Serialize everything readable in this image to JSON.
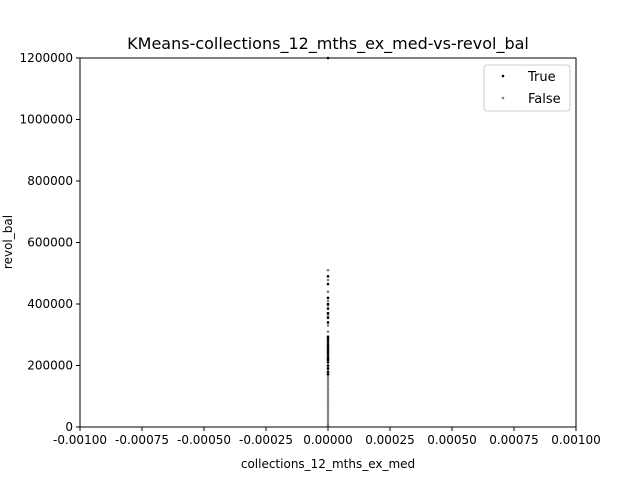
{
  "chart_data": {
    "type": "scatter",
    "title": "KMeans-collections_12_mths_ex_med-vs-revol_bal",
    "xlabel": "collections_12_mths_ex_med",
    "ylabel": "revol_bal",
    "xlim": [
      -0.001,
      0.001
    ],
    "ylim": [
      0,
      1200000
    ],
    "x_ticks": [
      "-0.00100",
      "-0.00075",
      "-0.00050",
      "-0.00025",
      "0.00000",
      "0.00025",
      "0.00050",
      "0.00075",
      "0.00100"
    ],
    "y_ticks": [
      "0",
      "200000",
      "400000",
      "600000",
      "800000",
      "1000000",
      "1200000"
    ],
    "legend_position": "top-right",
    "grid": false,
    "series": [
      {
        "name": "True",
        "color": "#000000",
        "points": [
          {
            "x": 0,
            "y": 1200000
          },
          {
            "x": 0,
            "y": 490000
          },
          {
            "x": 0,
            "y": 465000
          },
          {
            "x": 0,
            "y": 420000
          },
          {
            "x": 0,
            "y": 400000
          },
          {
            "x": 0,
            "y": 385000
          },
          {
            "x": 0,
            "y": 370000
          },
          {
            "x": 0,
            "y": 355000
          },
          {
            "x": 0,
            "y": 340000
          },
          {
            "x": 0,
            "y": 292000
          },
          {
            "x": 0,
            "y": 285000
          },
          {
            "x": 0,
            "y": 278000
          },
          {
            "x": 0,
            "y": 270000
          },
          {
            "x": 0,
            "y": 262000
          },
          {
            "x": 0,
            "y": 255000
          },
          {
            "x": 0,
            "y": 248000
          },
          {
            "x": 0,
            "y": 240000
          },
          {
            "x": 0,
            "y": 232000
          },
          {
            "x": 0,
            "y": 225000
          },
          {
            "x": 0,
            "y": 218000
          },
          {
            "x": 0,
            "y": 210000
          },
          {
            "x": 0,
            "y": 200000
          },
          {
            "x": 0,
            "y": 190000
          },
          {
            "x": 0,
            "y": 180000
          },
          {
            "x": 0,
            "y": 172000
          }
        ]
      },
      {
        "name": "False",
        "color": "#808080",
        "points": [
          {
            "x": 0,
            "y": 510000
          },
          {
            "x": 0,
            "y": 478000
          },
          {
            "x": 0,
            "y": 440000
          },
          {
            "x": 0,
            "y": 410000
          },
          {
            "x": 0,
            "y": 395000
          },
          {
            "x": 0,
            "y": 362000
          },
          {
            "x": 0,
            "y": 330000
          },
          {
            "x": 0,
            "y": 310000
          },
          {
            "x": 0,
            "y": 295000
          },
          {
            "x": 0,
            "y": 268000
          },
          {
            "x": 0,
            "y": 244000
          },
          {
            "x": 0,
            "y": 220000
          },
          {
            "x": 0,
            "y": 195000
          },
          {
            "x": 0,
            "y": 168000
          },
          {
            "x": 0,
            "y": 160000
          },
          {
            "x": 0,
            "y": 152000
          },
          {
            "x": 0,
            "y": 144000
          },
          {
            "x": 0,
            "y": 136000
          },
          {
            "x": 0,
            "y": 128000
          },
          {
            "x": 0,
            "y": 120000
          },
          {
            "x": 0,
            "y": 112000
          },
          {
            "x": 0,
            "y": 104000
          },
          {
            "x": 0,
            "y": 96000
          },
          {
            "x": 0,
            "y": 88000
          },
          {
            "x": 0,
            "y": 80000
          },
          {
            "x": 0,
            "y": 72000
          },
          {
            "x": 0,
            "y": 64000
          },
          {
            "x": 0,
            "y": 56000
          },
          {
            "x": 0,
            "y": 48000
          },
          {
            "x": 0,
            "y": 40000
          },
          {
            "x": 0,
            "y": 32000
          },
          {
            "x": 0,
            "y": 24000
          },
          {
            "x": 0,
            "y": 16000
          },
          {
            "x": 0,
            "y": 8000
          },
          {
            "x": 0,
            "y": 2000
          }
        ]
      }
    ]
  }
}
